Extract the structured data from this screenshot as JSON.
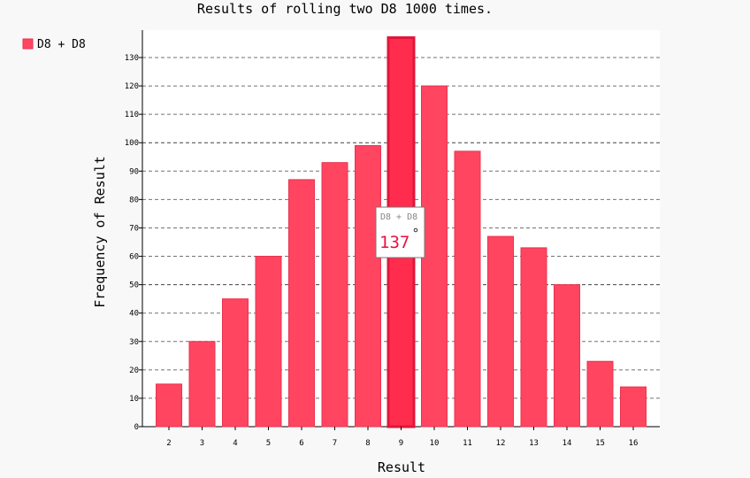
{
  "chart_data": {
    "type": "bar",
    "title": "Results of rolling two D8 1000 times.",
    "xlabel": "Result",
    "ylabel": "Frequency of Result",
    "categories": [
      "2",
      "3",
      "4",
      "5",
      "6",
      "7",
      "8",
      "9",
      "10",
      "11",
      "12",
      "13",
      "14",
      "15",
      "16"
    ],
    "series": [
      {
        "name": "D8 + D8",
        "values": [
          15,
          30,
          45,
          60,
          87,
          93,
          99,
          137,
          120,
          97,
          67,
          63,
          50,
          23,
          14
        ]
      }
    ],
    "ylim": [
      0,
      140
    ],
    "yticks": [
      0,
      10,
      20,
      30,
      40,
      50,
      60,
      70,
      80,
      90,
      100,
      110,
      120,
      130
    ],
    "major_yticks": [
      0,
      50,
      100
    ],
    "grid": true,
    "legend": "top-left",
    "highlighted_category": "9",
    "tooltip": {
      "series": "D8 + D8",
      "value": "137"
    }
  },
  "colors": {
    "bar": "#ff4560",
    "bar_stroke": "#e8334f",
    "bar_highlight": "#ff2c4d",
    "bar_highlight_stroke": "#e0163a",
    "plot_background": "#ffffff",
    "page_background": "#f8f8f8"
  }
}
